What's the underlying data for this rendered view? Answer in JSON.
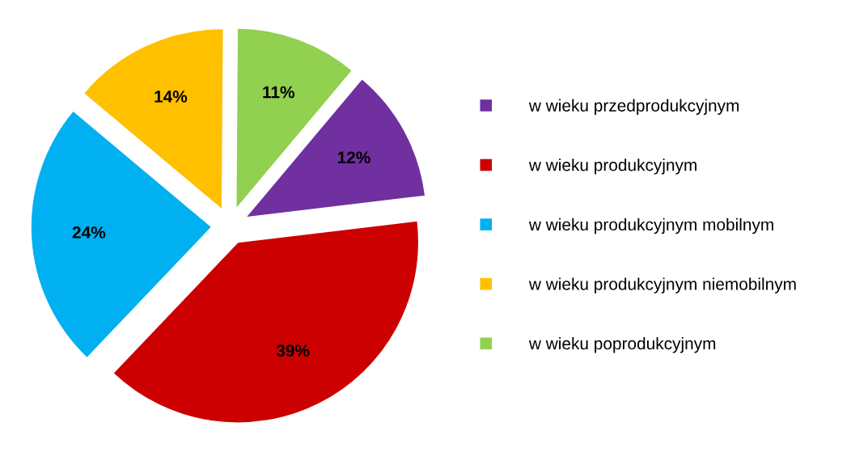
{
  "chart_data": {
    "type": "pie",
    "categories": [
      "w wieku przedprodukcyjnym",
      "w wieku produkcyjnym",
      "w wieku produkcyjnym mobilnym",
      "w wieku produkcyjnym niemobilnym",
      "w wieku poprodukcyjnym"
    ],
    "values": [
      12,
      39,
      24,
      14,
      11
    ],
    "colors": [
      "#7030a0",
      "#cc0000",
      "#00b0f0",
      "#ffc000",
      "#92d050"
    ],
    "value_labels": [
      "12%",
      "39%",
      "24%",
      "14%",
      "11%"
    ],
    "legend": "right"
  }
}
